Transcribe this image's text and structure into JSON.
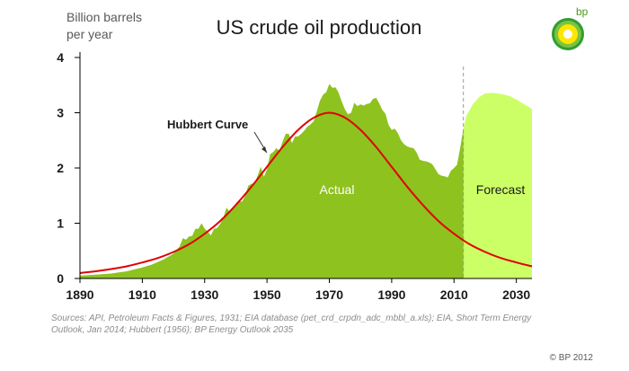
{
  "chart_data": {
    "type": "area",
    "title": "US crude oil production",
    "ylabel": [
      "Billion  barrels",
      "per year"
    ],
    "xlabel": "",
    "xlim": [
      1890,
      2035
    ],
    "ylim": [
      0,
      4
    ],
    "x_ticks": [
      "1890",
      "1910",
      "1930",
      "1950",
      "1970",
      "1990",
      "2010",
      "2030"
    ],
    "y_ticks": [
      "0",
      "1",
      "2",
      "3",
      "4"
    ],
    "forecast_start": 2013,
    "series": [
      {
        "name": "Actual",
        "color": "#8dc21f",
        "x": [
          1890,
          1895,
          1900,
          1905,
          1910,
          1913,
          1915,
          1917,
          1920,
          1922,
          1923,
          1924,
          1925,
          1926,
          1927,
          1928,
          1929,
          1930,
          1931,
          1932,
          1933,
          1934,
          1935,
          1936,
          1937,
          1938,
          1939,
          1940,
          1941,
          1942,
          1943,
          1944,
          1945,
          1946,
          1947,
          1948,
          1949,
          1950,
          1951,
          1952,
          1953,
          1954,
          1955,
          1956,
          1957,
          1958,
          1959,
          1960,
          1961,
          1962,
          1963,
          1964,
          1965,
          1966,
          1967,
          1968,
          1969,
          1970,
          1971,
          1972,
          1973,
          1974,
          1975,
          1976,
          1977,
          1978,
          1979,
          1980,
          1981,
          1982,
          1983,
          1984,
          1985,
          1986,
          1987,
          1988,
          1989,
          1990,
          1991,
          1992,
          1993,
          1994,
          1995,
          1996,
          1997,
          1998,
          1999,
          2000,
          2001,
          2002,
          2003,
          2004,
          2005,
          2006,
          2007,
          2008,
          2009,
          2010,
          2011,
          2012,
          2013
        ],
        "values": [
          0.05,
          0.07,
          0.09,
          0.13,
          0.2,
          0.25,
          0.3,
          0.35,
          0.45,
          0.58,
          0.73,
          0.7,
          0.76,
          0.77,
          0.9,
          0.9,
          1.0,
          0.9,
          0.85,
          0.78,
          0.9,
          0.91,
          0.99,
          1.1,
          1.28,
          1.21,
          1.26,
          1.35,
          1.4,
          1.39,
          1.5,
          1.68,
          1.71,
          1.73,
          1.86,
          2.02,
          1.84,
          1.97,
          2.25,
          2.29,
          2.36,
          2.31,
          2.48,
          2.62,
          2.62,
          2.45,
          2.57,
          2.57,
          2.62,
          2.68,
          2.75,
          2.79,
          2.85,
          3.03,
          3.22,
          3.33,
          3.37,
          3.52,
          3.45,
          3.46,
          3.36,
          3.2,
          3.06,
          2.97,
          3.0,
          3.18,
          3.12,
          3.15,
          3.13,
          3.16,
          3.17,
          3.25,
          3.27,
          3.17,
          3.05,
          2.98,
          2.78,
          2.69,
          2.71,
          2.63,
          2.5,
          2.43,
          2.39,
          2.37,
          2.36,
          2.28,
          2.15,
          2.13,
          2.12,
          2.1,
          2.07,
          1.98,
          1.89,
          1.86,
          1.85,
          1.83,
          1.95,
          2.0,
          2.06,
          2.37,
          2.72
        ]
      },
      {
        "name": "Forecast",
        "color": "#ccff66",
        "x": [
          2013,
          2014,
          2016,
          2018,
          2020,
          2022,
          2024,
          2026,
          2028,
          2030,
          2032,
          2035
        ],
        "values": [
          2.72,
          2.95,
          3.15,
          3.28,
          3.35,
          3.36,
          3.35,
          3.33,
          3.3,
          3.24,
          3.17,
          3.07
        ]
      },
      {
        "name": "Hubbert Curve",
        "color": "#e00000",
        "peak_year": 1970,
        "peak_value": 3.0,
        "x": [
          1890,
          1895,
          1900,
          1905,
          1910,
          1915,
          1920,
          1925,
          1930,
          1935,
          1940,
          1945,
          1950,
          1955,
          1960,
          1965,
          1970,
          1975,
          1980,
          1985,
          1990,
          1995,
          2000,
          2005,
          2010,
          2015,
          2020,
          2025,
          2030,
          2035
        ],
        "values": [
          0.1,
          0.13,
          0.17,
          0.22,
          0.29,
          0.37,
          0.48,
          0.62,
          0.81,
          1.04,
          1.33,
          1.66,
          2.02,
          2.38,
          2.69,
          2.91,
          3.0,
          2.91,
          2.69,
          2.38,
          2.02,
          1.66,
          1.33,
          1.04,
          0.81,
          0.62,
          0.48,
          0.37,
          0.29,
          0.22
        ]
      }
    ],
    "annotations": [
      "Hubbert Curve",
      "Actual",
      "Forecast"
    ]
  },
  "source_text": [
    "Sources:  API, Petroleum Facts & Figures, 1931; EIA database (pet_crd_crpdn_adc_mbbl_a.xls); EIA, Short Term Energy",
    "Outlook, Jan 2014; Hubbert (1956); BP Energy  Outlook 2035"
  ],
  "copyright": "© BP 2012",
  "logo": {
    "text": "bp",
    "icon": "bp-helios-logo-icon"
  }
}
